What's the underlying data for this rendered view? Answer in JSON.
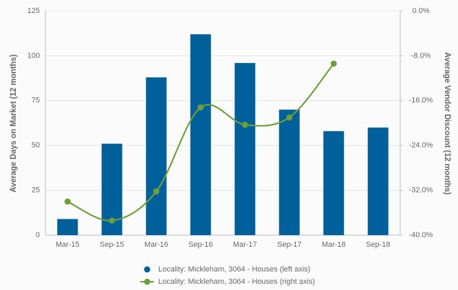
{
  "chart_data": {
    "type": "bar",
    "categories": [
      "Mar-15",
      "Sep-15",
      "Mar-16",
      "Sep-16",
      "Mar-17",
      "Sep-17",
      "Mar-18",
      "Sep-18"
    ],
    "series": [
      {
        "name": "Locality: Mickleham, 3064 - Houses (left axis)",
        "type": "bar",
        "axis": "y",
        "color": "#00609c",
        "values": [
          9,
          51,
          88,
          112,
          96,
          70,
          58,
          60
        ]
      },
      {
        "name": "Locality: Mickleham, 3064 - Houses (right axis)",
        "type": "line",
        "axis": "y2",
        "color": "#6f9e35",
        "values": [
          -34.0,
          -37.4,
          -32.2,
          -17.2,
          -20.3,
          -19.0,
          -9.4,
          null
        ]
      }
    ],
    "ylabel": "Average Days on Market (12 months)",
    "y2label": "Average Vendor Discount (12 months)",
    "ylim": [
      0,
      125
    ],
    "yticks": [
      0,
      25,
      50,
      75,
      100,
      125
    ],
    "y2lim": [
      -40,
      0
    ],
    "y2ticks": [
      {
        "value": -40,
        "label": "-40.0%"
      },
      {
        "value": -32,
        "label": "-32.0%"
      },
      {
        "value": -24,
        "label": "-24.0%"
      },
      {
        "value": -16,
        "label": "-16.0%"
      },
      {
        "value": -8,
        "label": "-8.0%"
      },
      {
        "value": 0,
        "label": "0.0%"
      }
    ],
    "grid": true,
    "legend": "bottom"
  }
}
